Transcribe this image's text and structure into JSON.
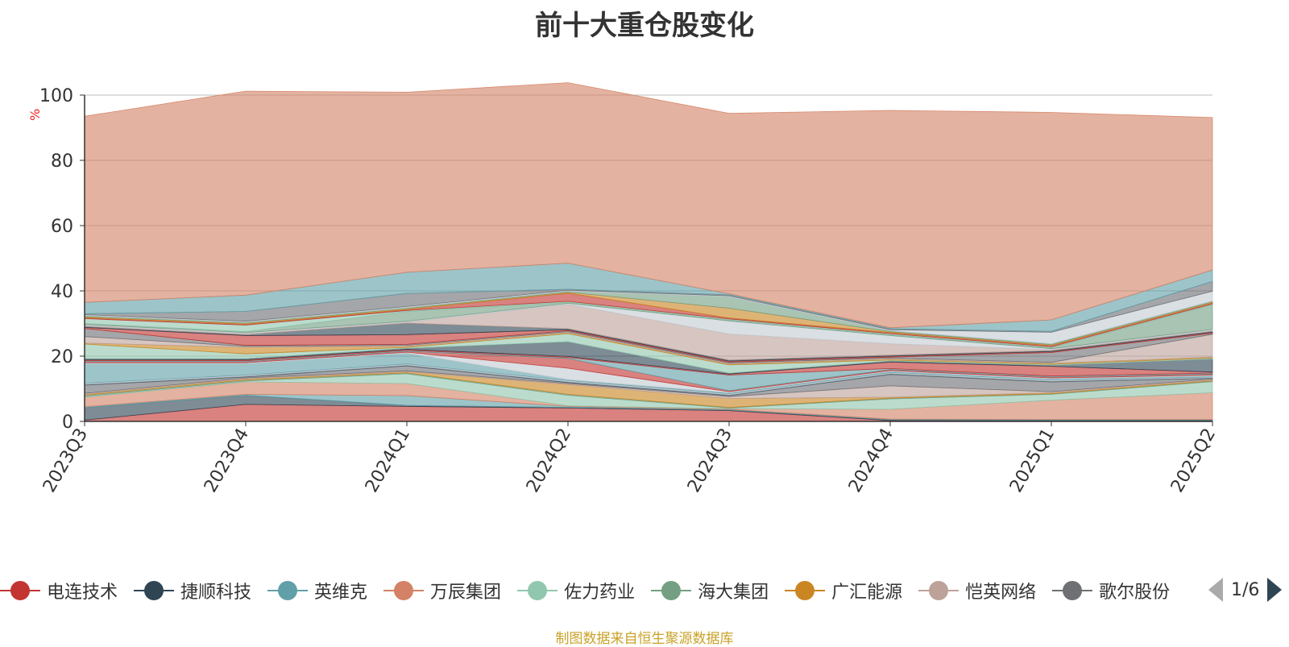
{
  "chart_data": {
    "type": "area",
    "title": "前十大重仓股变化",
    "ylabel": "%",
    "ylim": [
      0,
      100
    ],
    "yticks": [
      0,
      20,
      40,
      60,
      80,
      100
    ],
    "grid": true,
    "stacked": true,
    "categories": [
      "2023Q3",
      "2023Q4",
      "2024Q1",
      "2024Q2",
      "2024Q3",
      "2024Q4",
      "2025Q1",
      "2025Q2"
    ],
    "series": [
      {
        "name": "电连技术",
        "color": "#c23531",
        "values": [
          0.4,
          5.2,
          4.6,
          4.1,
          3.3,
          0.3,
          0.2,
          0.2
        ]
      },
      {
        "name": "捷顺科技",
        "color": "#2f4554",
        "values": [
          3.8,
          2.8,
          0.3,
          0.2,
          0.2,
          0.2,
          0.2,
          0.2
        ]
      },
      {
        "name": "英维克",
        "color": "#61a0a8",
        "values": [
          0.3,
          0.3,
          3.0,
          0.3,
          0.2,
          0.2,
          0.2,
          0.2
        ]
      },
      {
        "name": "万辰集团",
        "color": "#d48265",
        "values": [
          2.9,
          3.8,
          3.7,
          0.2,
          0.2,
          3.0,
          5.9,
          8.2
        ]
      },
      {
        "name": "佐力药业",
        "color": "#91c7ae",
        "values": [
          0.3,
          0.3,
          3.0,
          3.2,
          0.2,
          3.2,
          1.8,
          3.4
        ]
      },
      {
        "name": "海大集团",
        "color": "#749f83",
        "values": [
          0.3,
          0.3,
          0.3,
          0.3,
          0.2,
          0.2,
          0.2,
          0.2
        ]
      },
      {
        "name": "广汇能源",
        "color": "#ca8622",
        "values": [
          0.3,
          0.3,
          0.3,
          3.0,
          2.7,
          0.3,
          0.3,
          0.3
        ]
      },
      {
        "name": "恺英网络",
        "color": "#bda29a",
        "values": [
          0.3,
          0.3,
          0.3,
          0.3,
          0.6,
          3.5,
          0.3,
          0.3
        ]
      },
      {
        "name": "歌尔股份",
        "color": "#6e7074",
        "values": [
          2.5,
          0.3,
          1.5,
          0.3,
          0.3,
          3.5,
          3.0,
          0.2
        ]
      },
      {
        "name": "",
        "color": "#546570",
        "values": [
          0.3,
          0.3,
          0.3,
          0.3,
          0.3,
          0.3,
          0.3,
          0.2
        ]
      },
      {
        "name": "",
        "color": "#c4ccd3",
        "values": [
          0.3,
          0.3,
          0.3,
          0.3,
          0.3,
          0.3,
          0.3,
          0.2
        ]
      },
      {
        "name": "",
        "color": "#61a0a8",
        "values": [
          6.0,
          3.5,
          3.3,
          0.3,
          0.3,
          0.3,
          0.3,
          0.3
        ]
      },
      {
        "name": "",
        "color": "#c4ccd3",
        "values": [
          0.3,
          0.3,
          0.3,
          3.5,
          0.3,
          0.3,
          0.3,
          0.3
        ]
      },
      {
        "name": "",
        "color": "#c23531",
        "values": [
          0.3,
          0.3,
          0.3,
          3.0,
          0.3,
          0.3,
          0.3,
          0.3
        ]
      },
      {
        "name": "",
        "color": "#61a0a8",
        "values": [
          0.3,
          0.3,
          0.3,
          0.3,
          4.8,
          0.3,
          0.3,
          0.3
        ]
      },
      {
        "name": "",
        "color": "#c23531",
        "values": [
          0.3,
          0.3,
          0.3,
          0.3,
          0.3,
          2.0,
          3.0,
          0.3
        ]
      },
      {
        "name": "",
        "color": "#2f4554",
        "values": [
          0.3,
          0.3,
          0.3,
          4.5,
          0.3,
          0.3,
          0.3,
          4.0
        ]
      },
      {
        "name": "",
        "color": "#91c7ae",
        "values": [
          4.5,
          1.5,
          0.3,
          2.5,
          2.5,
          0.3,
          0.3,
          0.3
        ]
      },
      {
        "name": "",
        "color": "#ca8622",
        "values": [
          0.3,
          2.0,
          0.3,
          0.3,
          0.3,
          0.3,
          0.3,
          0.3
        ]
      },
      {
        "name": "",
        "color": "#bda29a",
        "values": [
          2.0,
          0.3,
          0.3,
          0.3,
          0.3,
          0.3,
          0.3,
          7.0
        ]
      },
      {
        "name": "",
        "color": "#6e7074",
        "values": [
          2.5,
          0.3,
          0.3,
          0.3,
          0.3,
          0.3,
          3.0,
          0.3
        ]
      },
      {
        "name": "",
        "color": "#c23531",
        "values": [
          0.3,
          3.0,
          3.0,
          0.3,
          0.3,
          0.3,
          0.3,
          0.3
        ]
      },
      {
        "name": "",
        "color": "#2f4554",
        "values": [
          0.3,
          0.3,
          3.5,
          0.3,
          0.3,
          0.3,
          0.3,
          0.3
        ]
      },
      {
        "name": "",
        "color": "#bda29a",
        "values": [
          0.3,
          0.3,
          0.3,
          7.5,
          8.0,
          3.5,
          0.3,
          0.3
        ]
      },
      {
        "name": "",
        "color": "#c4ccd3",
        "values": [
          0.3,
          0.3,
          0.3,
          0.3,
          4.0,
          2.5,
          0.3,
          0.3
        ]
      },
      {
        "name": "",
        "color": "#749f83",
        "values": [
          0.3,
          0.3,
          3.0,
          0.3,
          0.3,
          0.3,
          0.3,
          7.5
        ]
      },
      {
        "name": "",
        "color": "#91c7ae",
        "values": [
          1.5,
          2.0,
          0.3,
          0.3,
          0.3,
          0.3,
          0.3,
          0.3
        ]
      },
      {
        "name": "",
        "color": "#c23531",
        "values": [
          0.3,
          0.3,
          0.3,
          2.5,
          0.3,
          0.3,
          0.3,
          0.3
        ]
      },
      {
        "name": "",
        "color": "#ca8622",
        "values": [
          0.3,
          0.3,
          0.3,
          0.3,
          3.0,
          0.3,
          0.3,
          0.3
        ]
      },
      {
        "name": "",
        "color": "#749f83",
        "values": [
          0.3,
          0.3,
          0.3,
          0.3,
          3.5,
          0.3,
          0.3,
          0.3
        ]
      },
      {
        "name": "",
        "color": "#c4ccd3",
        "values": [
          0.3,
          0.3,
          0.3,
          0.3,
          0.3,
          0.3,
          3.5,
          3.0
        ]
      },
      {
        "name": "",
        "color": "#6e7074",
        "values": [
          0.3,
          3.0,
          4.0,
          0.3,
          0.3,
          0.3,
          0.3,
          3.0
        ]
      },
      {
        "name": "",
        "color": "#61a0a8",
        "values": [
          3.5,
          5.0,
          6.5,
          8.0,
          0.3,
          0.3,
          3.5,
          3.5
        ]
      },
      {
        "name": "",
        "color": "#d48265",
        "values": [
          57.0,
          62.5,
          55.2,
          55.3,
          55.3,
          66.6,
          63.6,
          46.7
        ]
      }
    ]
  },
  "legend": {
    "items": [
      {
        "name": "电连技术",
        "color": "#c23531"
      },
      {
        "name": "捷顺科技",
        "color": "#2f4554"
      },
      {
        "name": "英维克",
        "color": "#61a0a8"
      },
      {
        "name": "万辰集团",
        "color": "#d48265"
      },
      {
        "name": "佐力药业",
        "color": "#91c7ae"
      },
      {
        "name": "海大集团",
        "color": "#749f83"
      },
      {
        "name": "广汇能源",
        "color": "#ca8622"
      },
      {
        "name": "恺英网络",
        "color": "#bda29a"
      },
      {
        "name": "歌尔股份",
        "color": "#6e7074"
      }
    ],
    "page": "1/6"
  },
  "source": "制图数据来自恒生聚源数据库"
}
